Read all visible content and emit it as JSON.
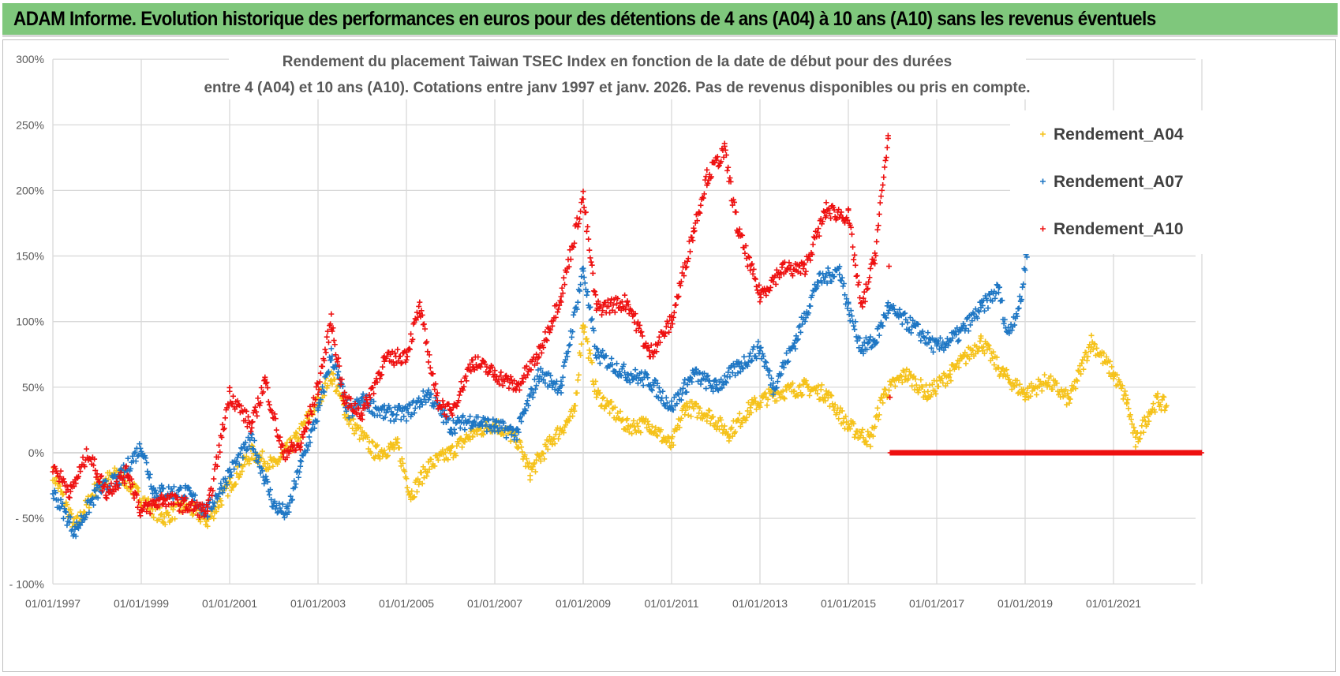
{
  "header": {
    "title": "ADAM Informe. Evolution historique des performances en euros pour des détentions de 4 ans (A04) à 10 ans (A10) sans les revenus éventuels"
  },
  "chart_data": {
    "type": "scatter",
    "title": [
      "Rendement du placement Taiwan TSEC Index en fonction de la date de début pour des durées",
      "entre 4 (A04) et 10 ans (A10).  Cotations entre janv 1997 et janv. 2026. Pas de revenus disponibles ou pris en compte."
    ],
    "xlabel": "",
    "ylabel": "",
    "xlim": [
      1997,
      2023
    ],
    "ylim": [
      -100,
      300
    ],
    "y_ticks": [
      {
        "v": 300,
        "label": "300%"
      },
      {
        "v": 250,
        "label": "250%"
      },
      {
        "v": 200,
        "label": "200%"
      },
      {
        "v": 150,
        "label": "150%"
      },
      {
        "v": 100,
        "label": "100%"
      },
      {
        "v": 50,
        "label": "50%"
      },
      {
        "v": 0,
        "label": "0%"
      },
      {
        "v": -50,
        "label": "- 50%"
      },
      {
        "v": -100,
        "label": "- 100%"
      }
    ],
    "x_ticks": [
      {
        "v": 1997,
        "label": "01/01/1997"
      },
      {
        "v": 1999,
        "label": "01/01/1999"
      },
      {
        "v": 2001,
        "label": "01/01/2001"
      },
      {
        "v": 2003,
        "label": "01/01/2003"
      },
      {
        "v": 2005,
        "label": "01/01/2005"
      },
      {
        "v": 2007,
        "label": "01/01/2007"
      },
      {
        "v": 2009,
        "label": "01/01/2009"
      },
      {
        "v": 2011,
        "label": "01/01/2011"
      },
      {
        "v": 2013,
        "label": "01/01/2013"
      },
      {
        "v": 2015,
        "label": "01/01/2015"
      },
      {
        "v": 2017,
        "label": "01/01/2017"
      },
      {
        "v": 2019,
        "label": "01/01/2019"
      },
      {
        "v": 2021,
        "label": "01/01/2021"
      }
    ],
    "grid": true,
    "legend": "top-right",
    "series": [
      {
        "name": "Rendement_A04",
        "color": "#f5c21b",
        "points": [
          [
            1997,
            -15
          ],
          [
            1997.5,
            -57
          ],
          [
            1998,
            -25
          ],
          [
            1998.5,
            -15
          ],
          [
            1999,
            -35
          ],
          [
            1999.5,
            -50
          ],
          [
            2000,
            -40
          ],
          [
            2000.5,
            -52
          ],
          [
            2001,
            -25
          ],
          [
            2001.5,
            0
          ],
          [
            2002,
            -10
          ],
          [
            2002.5,
            10
          ],
          [
            2003,
            40
          ],
          [
            2003.3,
            60
          ],
          [
            2003.7,
            25
          ],
          [
            2004.3,
            0
          ],
          [
            2004.8,
            5
          ],
          [
            2005.1,
            -32
          ],
          [
            2005.5,
            -10
          ],
          [
            2006,
            0
          ],
          [
            2006.5,
            15
          ],
          [
            2007,
            22
          ],
          [
            2007.5,
            10
          ],
          [
            2007.8,
            -15
          ],
          [
            2008.3,
            10
          ],
          [
            2008.8,
            30
          ],
          [
            2009,
            100
          ],
          [
            2009.3,
            45
          ],
          [
            2010,
            20
          ],
          [
            2010.5,
            22
          ],
          [
            2011,
            5
          ],
          [
            2011.3,
            35
          ],
          [
            2011.8,
            30
          ],
          [
            2012.3,
            15
          ],
          [
            2012.8,
            35
          ],
          [
            2013.3,
            45
          ],
          [
            2014,
            50
          ],
          [
            2014.5,
            45
          ],
          [
            2015,
            20
          ],
          [
            2015.5,
            10
          ],
          [
            2015.8,
            45
          ],
          [
            2016.3,
            60
          ],
          [
            2016.8,
            45
          ],
          [
            2017.3,
            60
          ],
          [
            2018,
            85
          ],
          [
            2018.5,
            60
          ],
          [
            2019,
            45
          ],
          [
            2019.5,
            55
          ],
          [
            2020,
            40
          ],
          [
            2020.5,
            85
          ],
          [
            2021,
            60
          ],
          [
            2021.3,
            40
          ],
          [
            2021.5,
            8
          ],
          [
            2021.8,
            30
          ],
          [
            2022,
            40
          ],
          [
            2022.2,
            35
          ]
        ]
      },
      {
        "name": "Rendement_A07",
        "color": "#1f77c4",
        "points": [
          [
            1997,
            -30
          ],
          [
            1997.5,
            -60
          ],
          [
            1998,
            -30
          ],
          [
            1998.5,
            -20
          ],
          [
            1999,
            5
          ],
          [
            1999.3,
            -30
          ],
          [
            2000,
            -30
          ],
          [
            2000.5,
            -45
          ],
          [
            2001,
            -15
          ],
          [
            2001.5,
            10
          ],
          [
            2002,
            -40
          ],
          [
            2002.3,
            -47
          ],
          [
            2002.6,
            -10
          ],
          [
            2003,
            30
          ],
          [
            2003.3,
            75
          ],
          [
            2003.7,
            30
          ],
          [
            2004,
            40
          ],
          [
            2004.5,
            30
          ],
          [
            2005,
            30
          ],
          [
            2005.5,
            45
          ],
          [
            2006,
            20
          ],
          [
            2006.5,
            25
          ],
          [
            2007,
            20
          ],
          [
            2007.5,
            15
          ],
          [
            2008,
            60
          ],
          [
            2008.5,
            50
          ],
          [
            2009,
            140
          ],
          [
            2009.3,
            75
          ],
          [
            2010,
            60
          ],
          [
            2010.5,
            55
          ],
          [
            2011,
            35
          ],
          [
            2011.5,
            60
          ],
          [
            2012,
            50
          ],
          [
            2012.5,
            65
          ],
          [
            2013,
            80
          ],
          [
            2013.3,
            50
          ],
          [
            2013.8,
            85
          ],
          [
            2014.3,
            130
          ],
          [
            2014.8,
            140
          ],
          [
            2015,
            110
          ],
          [
            2015.3,
            80
          ],
          [
            2015.6,
            85
          ],
          [
            2015.9,
            110
          ],
          [
            2016.5,
            95
          ],
          [
            2017,
            80
          ],
          [
            2017.5,
            90
          ],
          [
            2018,
            110
          ],
          [
            2018.4,
            125
          ],
          [
            2018.6,
            90
          ],
          [
            2018.9,
            115
          ],
          [
            2019.1,
            170
          ]
        ]
      },
      {
        "name": "Rendement_A10",
        "color": "#ee1111",
        "points": [
          [
            1997,
            -10
          ],
          [
            1997.4,
            -30
          ],
          [
            1997.8,
            0
          ],
          [
            1998.2,
            -30
          ],
          [
            1998.7,
            -15
          ],
          [
            1999,
            -45
          ],
          [
            1999.5,
            -35
          ],
          [
            2000,
            -40
          ],
          [
            2000.5,
            -45
          ],
          [
            2001,
            45
          ],
          [
            2001.5,
            20
          ],
          [
            2001.8,
            55
          ],
          [
            2002.2,
            0
          ],
          [
            2002.6,
            5
          ],
          [
            2003,
            50
          ],
          [
            2003.3,
            100
          ],
          [
            2003.6,
            40
          ],
          [
            2004,
            30
          ],
          [
            2004.5,
            70
          ],
          [
            2005,
            75
          ],
          [
            2005.3,
            110
          ],
          [
            2005.7,
            40
          ],
          [
            2006,
            30
          ],
          [
            2006.5,
            70
          ],
          [
            2007,
            60
          ],
          [
            2007.5,
            50
          ],
          [
            2008,
            75
          ],
          [
            2008.5,
            120
          ],
          [
            2009,
            195
          ],
          [
            2009.3,
            110
          ],
          [
            2010,
            115
          ],
          [
            2010.5,
            75
          ],
          [
            2011,
            100
          ],
          [
            2011.5,
            170
          ],
          [
            2011.8,
            210
          ],
          [
            2012.2,
            230
          ],
          [
            2012.5,
            170
          ],
          [
            2013,
            120
          ],
          [
            2013.5,
            140
          ],
          [
            2014,
            140
          ],
          [
            2014.5,
            185
          ],
          [
            2015,
            180
          ],
          [
            2015.3,
            110
          ],
          [
            2015.6,
            150
          ],
          [
            2015.9,
            240
          ],
          [
            2015.95,
            0
          ],
          [
            2023,
            0
          ]
        ]
      }
    ]
  }
}
